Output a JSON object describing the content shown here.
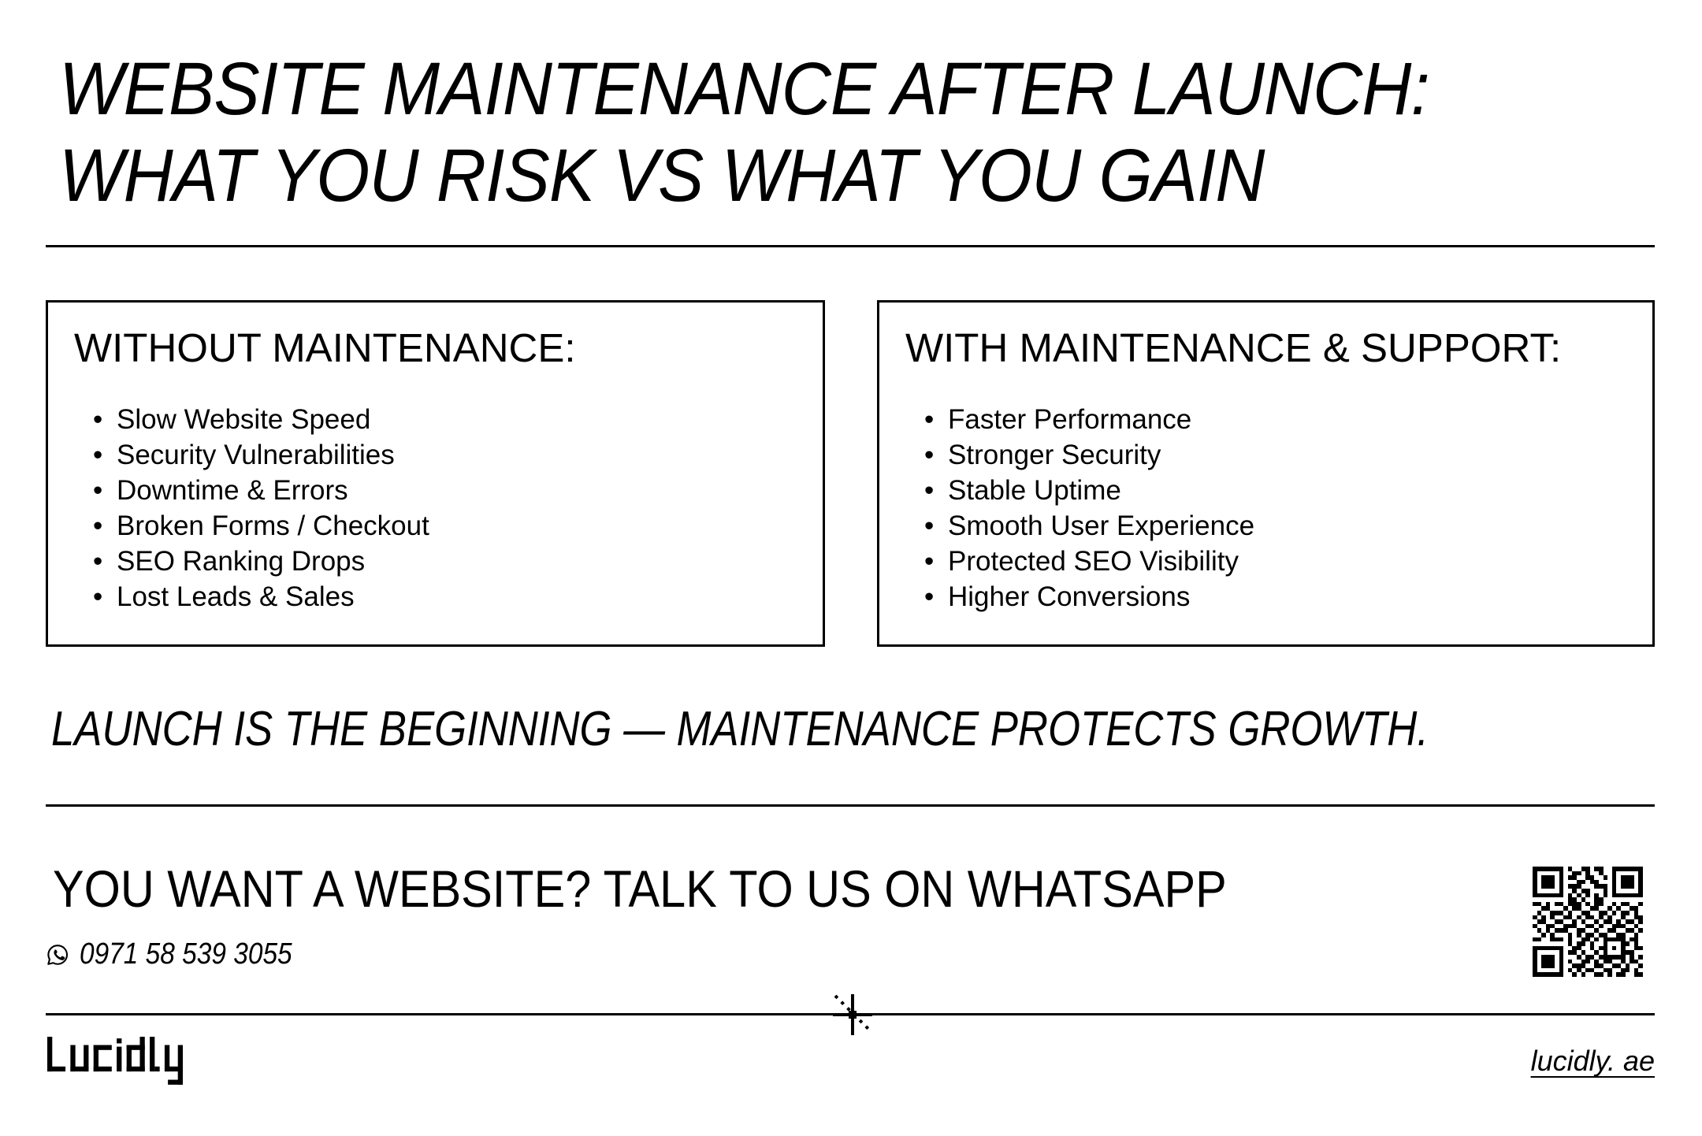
{
  "colors": {
    "ink": "#000000",
    "paper": "#ffffff"
  },
  "title": {
    "line1": "WEBSITE MAINTENANCE AFTER LAUNCH:",
    "line2": "WHAT YOU RISK VS WHAT YOU GAIN"
  },
  "boxes": [
    {
      "heading": "WITHOUT MAINTENANCE:",
      "items": [
        "Slow Website Speed",
        "Security Vulnerabilities",
        "Downtime & Errors",
        "Broken Forms / Checkout",
        "SEO Ranking Drops",
        "Lost Leads & Sales"
      ]
    },
    {
      "heading": "WITH MAINTENANCE & SUPPORT:",
      "items": [
        "Faster Performance",
        "Stronger Security",
        "Stable Uptime",
        "Smooth User Experience",
        "Protected SEO Visibility",
        "Higher Conversions"
      ]
    }
  ],
  "tagline": "LAUNCH IS THE BEGINNING — MAINTENANCE PROTECTS GROWTH.",
  "cta": {
    "heading": "YOU WANT A WEBSITE? TALK TO US ON WHATSAPP",
    "phone": "0971 58 539 3055",
    "phone_icon": "whatsapp-icon"
  },
  "qr": {
    "icon": "qr-code",
    "matrix": [
      "1111111010011011001111111",
      "1000001001101001001000001",
      "1011101011001100101011101",
      "1011101000110110001011101",
      "1011101011100011101011101",
      "1000001001011000101000001",
      "1111111010101010101111111",
      "0000000011010011000000000",
      "1101011011101011001011001",
      "0011000101100110010100110",
      "0100111010011001101011010",
      "1010100110101101010010011",
      "0110011001010010110101101",
      "1001100111001101001110010",
      "0101011100110010011001101",
      "0010100010101101100110010",
      "1100111010011010111110110",
      "0000000010110100100011010",
      "1111111001100101101010011",
      "1000001011010010100011100",
      "1011101000101101111110101",
      "1011101010011010110010110",
      "1011101001110011001101001",
      "1000001010101100110011010",
      "1111111001010011010110011"
    ]
  },
  "cursor": {
    "icon": "crosshair-cursor"
  },
  "footer": {
    "logo_text": "Lucidly",
    "website": "lucidly. ae"
  }
}
